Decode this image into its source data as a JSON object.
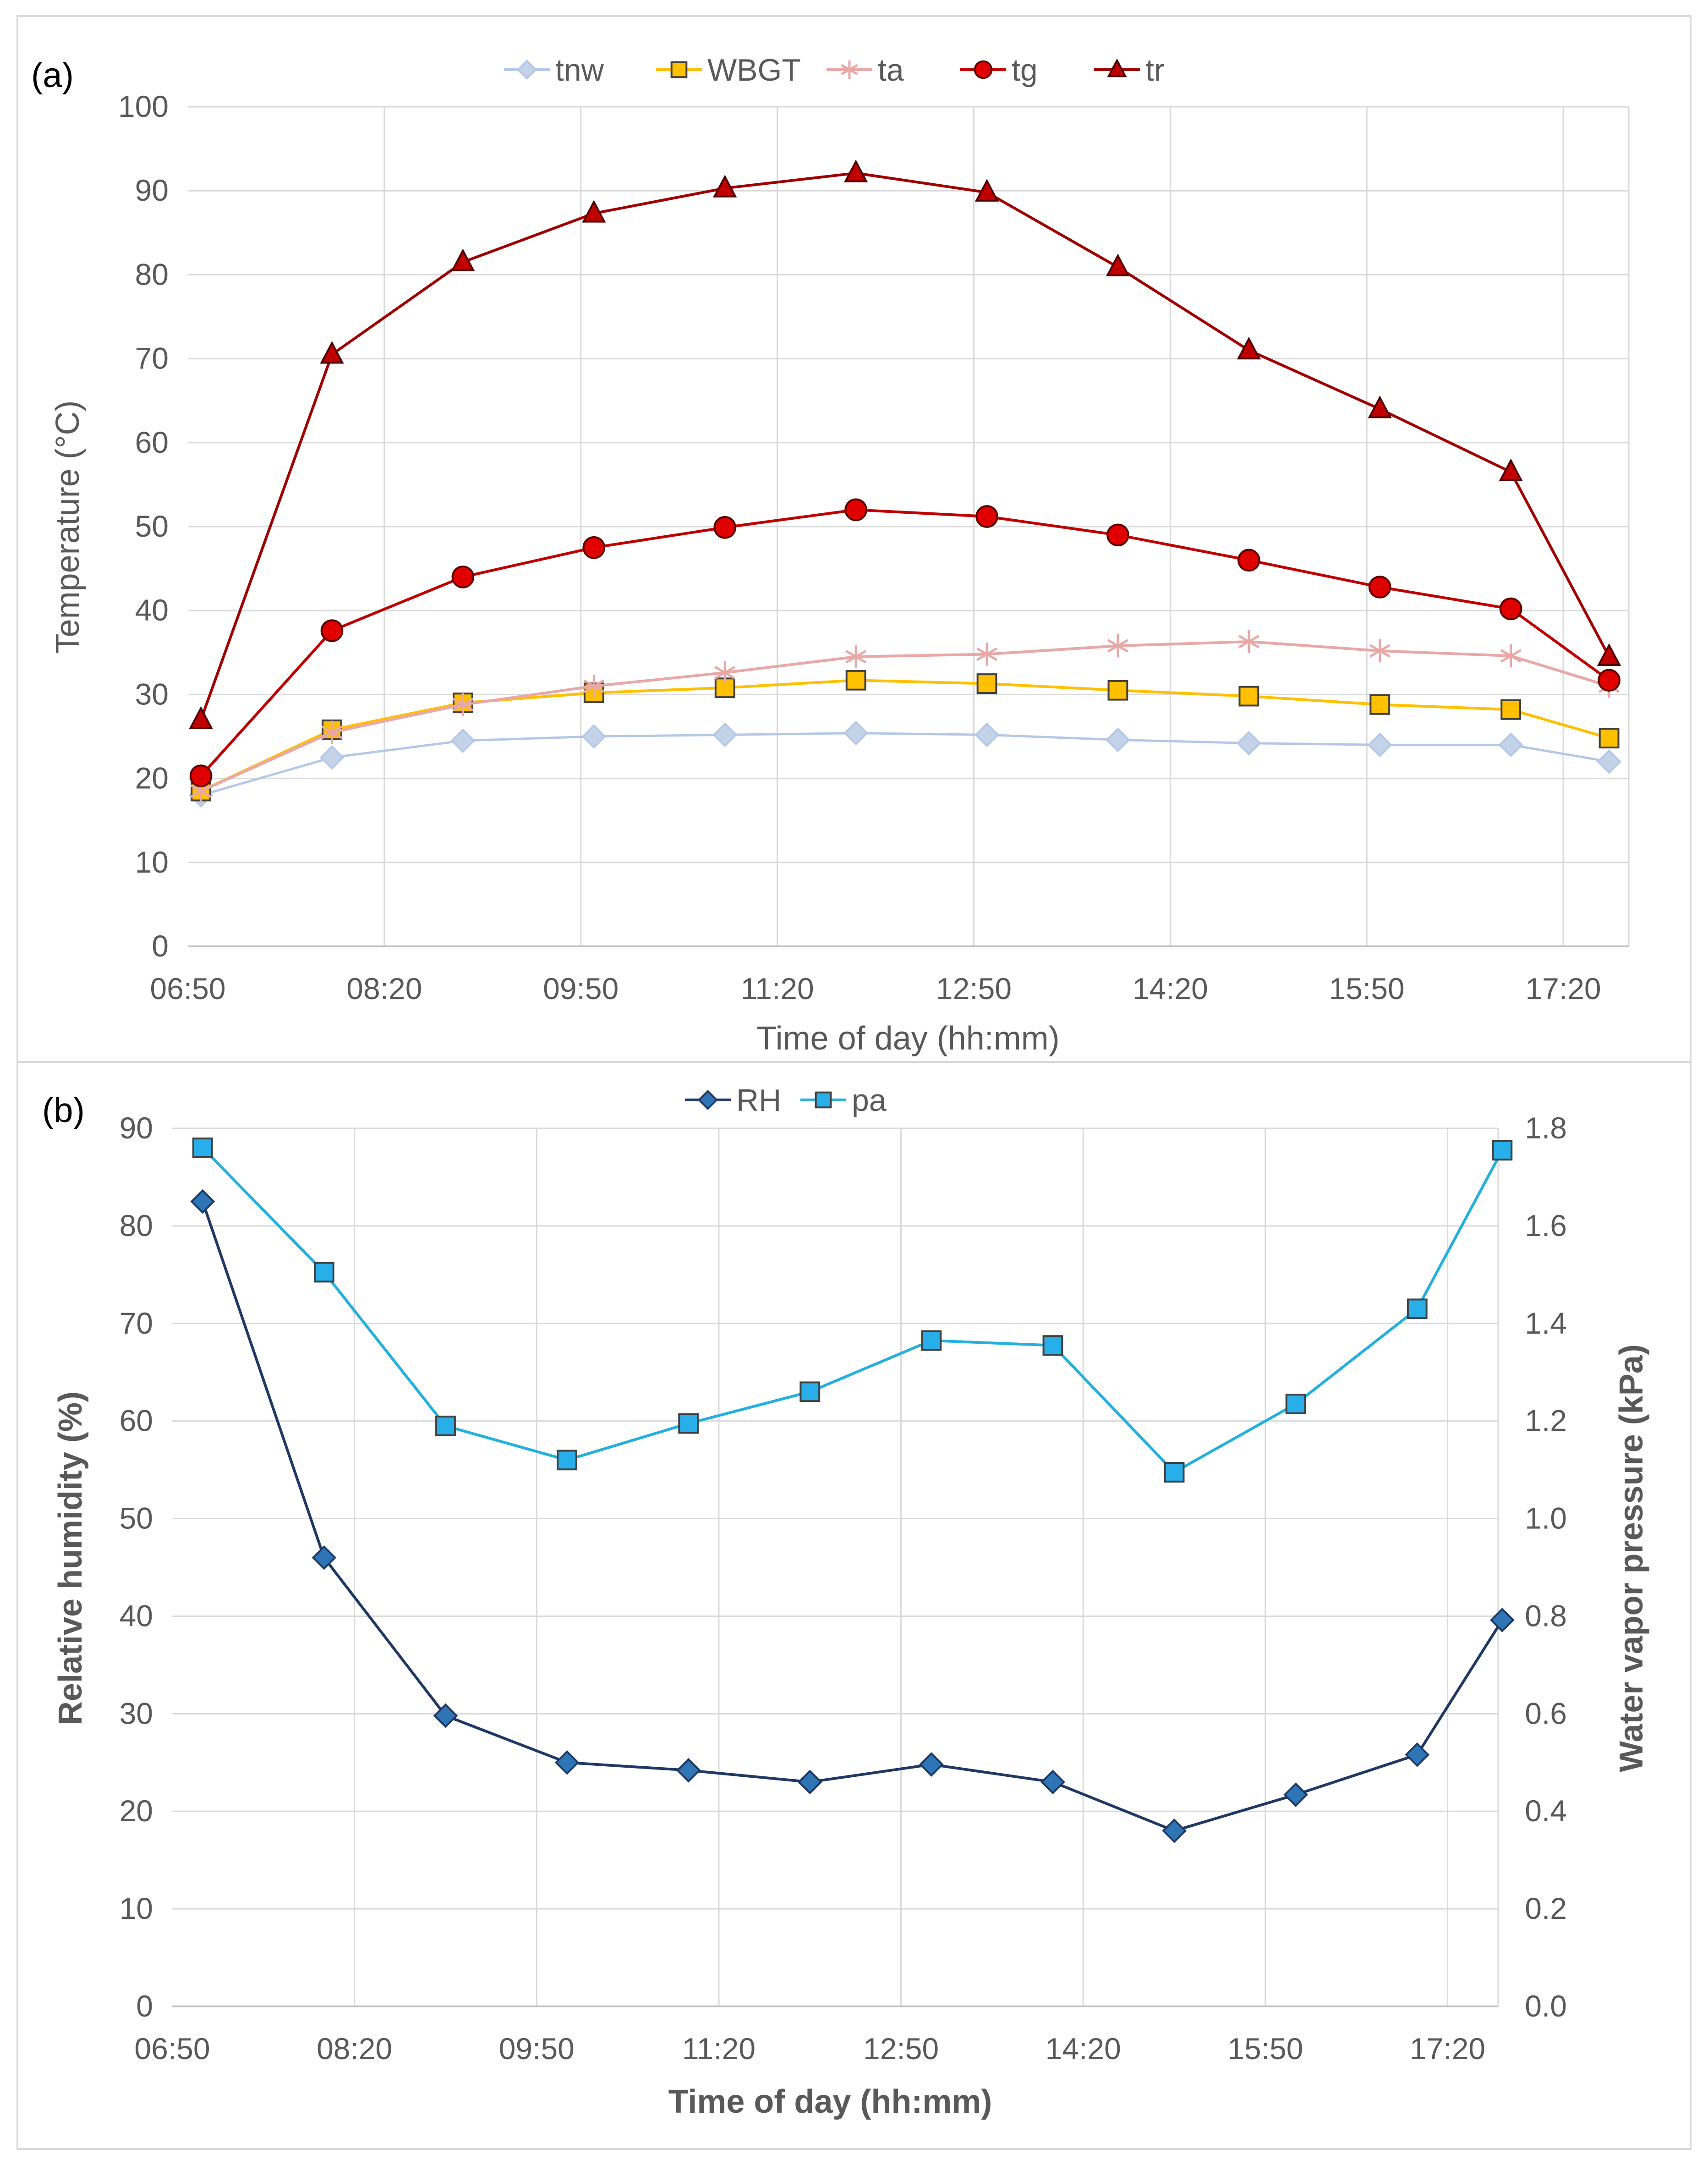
{
  "chart_data": [
    {
      "panel_label": "(a)",
      "type": "line",
      "xlabel": "Time of day (hh:mm)",
      "ylabel": "Temperature (°C)",
      "xlim": [
        410,
        1070
      ],
      "ylim": [
        0,
        100
      ],
      "x_tick_values": [
        410,
        500,
        590,
        680,
        770,
        860,
        950,
        1040
      ],
      "x_tick_labels": [
        "06:50",
        "08:20",
        "09:50",
        "11:20",
        "12:50",
        "14:20",
        "15:50",
        "17:20"
      ],
      "y_tick_labels": [
        "0",
        "10",
        "20",
        "30",
        "40",
        "50",
        "60",
        "70",
        "80",
        "90",
        "100"
      ],
      "x": [
        416,
        476,
        536,
        596,
        656,
        716,
        776,
        836,
        896,
        956,
        1016,
        1061
      ],
      "series": [
        {
          "name": "tnw",
          "marker": "diamond",
          "color": "#b4c7e7",
          "fill": "#c5d3e8",
          "values": [
            18,
            22.5,
            24.5,
            25,
            25.2,
            25.4,
            25.2,
            24.6,
            24.2,
            24,
            24,
            22
          ]
        },
        {
          "name": "WBGT",
          "marker": "square",
          "color": "#ffc000",
          "fill": "#ffc000",
          "values": [
            18.5,
            25.8,
            29,
            30.2,
            30.8,
            31.7,
            31.3,
            30.5,
            29.8,
            28.8,
            28.2,
            24.8
          ]
        },
        {
          "name": "ta",
          "marker": "star",
          "color": "#e8a8a8",
          "fill": "none",
          "values": [
            18.5,
            25.5,
            28.8,
            31,
            32.6,
            34.5,
            34.8,
            35.8,
            36.3,
            35.2,
            34.6,
            31
          ]
        },
        {
          "name": "tg",
          "marker": "circle",
          "color": "#c00000",
          "fill": "#e00000",
          "values": [
            20.3,
            37.6,
            44,
            47.5,
            49.9,
            52,
            51.2,
            49,
            46,
            42.8,
            40.2,
            31.7
          ]
        },
        {
          "name": "tr",
          "marker": "triangle",
          "color": "#a00000",
          "fill": "#c00000",
          "values": [
            27,
            70.5,
            81.5,
            87.3,
            90.3,
            92.1,
            89.8,
            80.9,
            71,
            64,
            56.5,
            34.5
          ]
        }
      ]
    },
    {
      "panel_label": "(b)",
      "type": "line",
      "xlabel": "Time of day (hh:mm)",
      "ylabel": "Relative humidity (%)",
      "y2label": "Water vapor pressure (kPa)",
      "xlim": [
        410,
        1065
      ],
      "ylim": [
        0,
        90
      ],
      "y2lim": [
        0,
        1.8
      ],
      "x_tick_values": [
        410,
        500,
        590,
        680,
        770,
        860,
        950,
        1040
      ],
      "x_tick_labels": [
        "06:50",
        "08:20",
        "09:50",
        "11:20",
        "12:50",
        "14:20",
        "15:50",
        "17:20"
      ],
      "y_tick_labels": [
        "0",
        "10",
        "20",
        "30",
        "40",
        "50",
        "60",
        "70",
        "80",
        "90"
      ],
      "y2_tick_labels": [
        "0.0",
        "0.2",
        "0.4",
        "0.6",
        "0.8",
        "1.0",
        "1.2",
        "1.4",
        "1.6",
        "1.8"
      ],
      "x": [
        425,
        485,
        545,
        605,
        665,
        725,
        785,
        845,
        905,
        965,
        1025,
        1067
      ],
      "series": [
        {
          "name": "RH",
          "axis": "left",
          "marker": "diamond",
          "color": "#1f3864",
          "fill": "#2e75b6",
          "values": [
            82.5,
            46,
            29.8,
            25,
            24.2,
            23,
            24.8,
            23,
            18,
            21.7,
            25.8,
            39.6
          ]
        },
        {
          "name": "pa",
          "axis": "right",
          "marker": "square",
          "color": "#22b0dc",
          "fill": "#28aee8",
          "values": [
            1.76,
            1.505,
            1.19,
            1.12,
            1.195,
            1.26,
            1.365,
            1.355,
            1.095,
            1.235,
            1.43,
            1.755
          ]
        }
      ]
    }
  ]
}
